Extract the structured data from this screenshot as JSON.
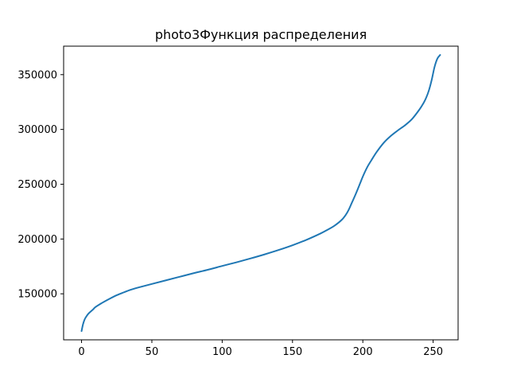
{
  "chart_data": {
    "type": "line",
    "title": "photo3Функция распределения",
    "xlabel": "",
    "ylabel": "",
    "xlim": [
      -12.75,
      267.75
    ],
    "ylim": [
      108000,
      376000
    ],
    "xticks": [
      0,
      50,
      100,
      150,
      200,
      250
    ],
    "yticks": [
      150000,
      200000,
      250000,
      300000,
      350000
    ],
    "xtick_labels": [
      "0",
      "50",
      "100",
      "150",
      "200",
      "250"
    ],
    "ytick_labels": [
      "150000",
      "200000",
      "250000",
      "300000",
      "350000"
    ],
    "grid": false,
    "series": [
      {
        "color": "#1f77b4",
        "x": [
          0,
          1,
          2,
          3,
          5,
          8,
          10,
          15,
          20,
          25,
          30,
          35,
          40,
          50,
          60,
          70,
          80,
          90,
          100,
          110,
          120,
          130,
          140,
          150,
          160,
          170,
          175,
          180,
          185,
          188,
          190,
          192,
          195,
          198,
          200,
          203,
          206,
          210,
          215,
          220,
          225,
          230,
          235,
          240,
          243,
          245,
          247,
          249,
          251,
          253,
          255
        ],
        "values": [
          116000,
          122000,
          126000,
          128500,
          132000,
          135500,
          138000,
          142000,
          145500,
          148700,
          151300,
          153700,
          155600,
          159000,
          162300,
          165600,
          168900,
          172000,
          175400,
          178700,
          182200,
          185900,
          189900,
          194300,
          199300,
          205100,
          208500,
          212300,
          217500,
          222300,
          226800,
          232500,
          241200,
          250600,
          257000,
          265200,
          271700,
          279700,
          288000,
          294200,
          299200,
          303800,
          309500,
          317700,
          323700,
          328800,
          335700,
          345300,
          357000,
          364600,
          368000
        ]
      }
    ]
  }
}
